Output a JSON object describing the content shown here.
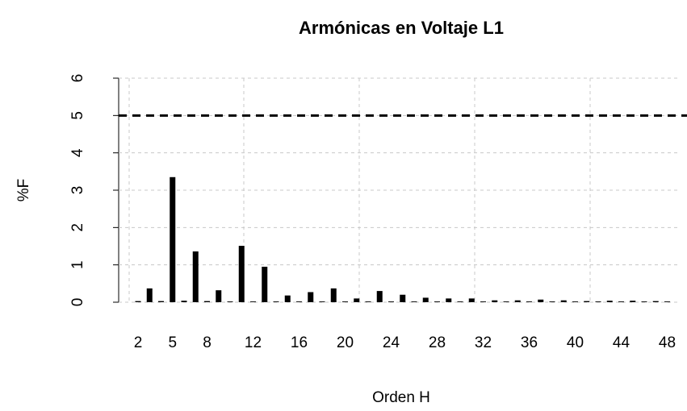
{
  "chart_data": {
    "type": "bar",
    "title": "Armónicas en Voltaje L1",
    "x_label": "Orden H",
    "y_label": "%F",
    "categories": [
      "2",
      null,
      null,
      "5",
      null,
      null,
      "8",
      null,
      null,
      null,
      "12",
      null,
      null,
      null,
      "16",
      null,
      null,
      null,
      "20",
      null,
      null,
      null,
      "24",
      null,
      null,
      null,
      "28",
      null,
      null,
      null,
      "32",
      null,
      null,
      null,
      "36",
      null,
      null,
      null,
      "40",
      null,
      null,
      null,
      "44",
      null,
      null,
      null,
      "48"
    ],
    "values": [
      0.03,
      0.37,
      0.03,
      3.35,
      0.04,
      1.36,
      0.03,
      0.32,
      0.02,
      1.51,
      0.02,
      0.95,
      0.02,
      0.18,
      0.02,
      0.27,
      0.02,
      0.37,
      0.02,
      0.1,
      0.02,
      0.3,
      0.02,
      0.2,
      0.02,
      0.12,
      0.02,
      0.1,
      0.02,
      0.1,
      0.02,
      0.05,
      0.02,
      0.05,
      0.02,
      0.07,
      0.02,
      0.05,
      0.02,
      0.03,
      0.02,
      0.04,
      0.02,
      0.04,
      0.02,
      0.03,
      0.02
    ],
    "color": "#000000",
    "limit": 5,
    "ylim": [
      0,
      6
    ],
    "yticks": [
      0,
      1,
      2,
      3,
      4,
      5,
      6
    ],
    "grid": true
  }
}
